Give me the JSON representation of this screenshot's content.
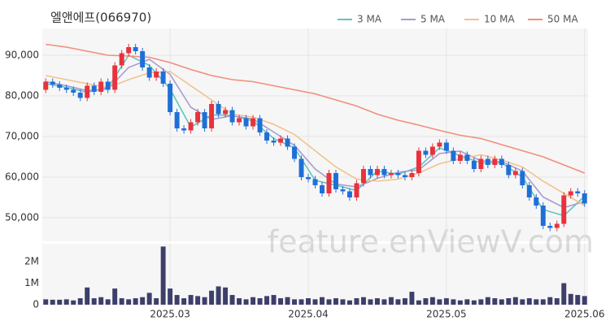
{
  "chart_data": {
    "type": "candlestick",
    "title": "엘앤에프(066970)",
    "watermark": "feature.enViewV.com",
    "legend": "top-right",
    "grid": true,
    "up_color": "#e8323c",
    "down_color": "#1f6fd8",
    "xlim": [
      -0.5,
      78.5
    ],
    "xticks": [
      {
        "value": 18,
        "label": "2025.03"
      },
      {
        "value": 38,
        "label": "2025.04"
      },
      {
        "value": 58,
        "label": "2025.05"
      },
      {
        "value": 78,
        "label": "2025.06"
      }
    ],
    "ylim": [
      44200,
      96600
    ],
    "yticks": [
      {
        "value": 50000,
        "label": "50,000"
      },
      {
        "value": 60000,
        "label": "60,000"
      },
      {
        "value": 70000,
        "label": "70,000"
      },
      {
        "value": 80000,
        "label": "80,000"
      },
      {
        "value": 90000,
        "label": "90,000"
      }
    ],
    "open": [
      81500,
      83500,
      82800,
      82000,
      81500,
      80800,
      79500,
      82500,
      81000,
      83500,
      81500,
      87500,
      90500,
      92000,
      91000,
      87000,
      84500,
      86000,
      83000,
      76000,
      72000,
      71500,
      73500,
      76000,
      72000,
      78000,
      75500,
      76500,
      73500,
      74500,
      72500,
      74500,
      71000,
      69000,
      68500,
      69500,
      67500,
      64500,
      60000,
      59500,
      58000,
      56000,
      61000,
      57000,
      56500,
      55000,
      58500,
      62000,
      60500,
      62000,
      60500,
      61000,
      60500,
      60000,
      61000,
      66500,
      65500,
      67500,
      68500,
      66500,
      64000,
      65500,
      64000,
      62000,
      64500,
      63000,
      64500,
      63000,
      60500,
      61500,
      58000,
      55000,
      53000,
      48000,
      47500,
      48500,
      55500,
      56500,
      56000
    ],
    "high": [
      84300,
      84300,
      83600,
      82800,
      82300,
      81600,
      83300,
      83300,
      84300,
      84300,
      88300,
      91300,
      92800,
      92800,
      91800,
      87800,
      86800,
      86800,
      83800,
      76800,
      72800,
      74300,
      76800,
      76800,
      78800,
      78800,
      77300,
      77300,
      75300,
      75300,
      75300,
      75300,
      71800,
      69800,
      70300,
      70300,
      68300,
      65300,
      60800,
      60300,
      58800,
      61800,
      61800,
      57800,
      57300,
      59300,
      62800,
      62800,
      62800,
      62800,
      61800,
      61800,
      61300,
      61800,
      67300,
      67300,
      68300,
      69300,
      69300,
      67300,
      66300,
      66300,
      64800,
      65300,
      65300,
      65300,
      65300,
      63800,
      62300,
      62300,
      58800,
      55800,
      53800,
      48800,
      49300,
      56300,
      57300,
      57300,
      56800
    ],
    "low": [
      80700,
      82000,
      81200,
      80700,
      80000,
      78700,
      78700,
      80200,
      80200,
      80700,
      80700,
      86700,
      89700,
      90200,
      86200,
      83700,
      83700,
      82200,
      75200,
      71200,
      70700,
      70700,
      72700,
      71200,
      71200,
      74700,
      74700,
      72700,
      72700,
      71700,
      71700,
      70200,
      68200,
      67700,
      67700,
      66700,
      63700,
      59200,
      58700,
      57200,
      55200,
      55200,
      56200,
      55700,
      54200,
      54200,
      57700,
      59700,
      59700,
      59700,
      59700,
      59700,
      59200,
      59200,
      60200,
      64700,
      64700,
      66700,
      65700,
      63200,
      63200,
      63200,
      61200,
      61200,
      62200,
      62200,
      62200,
      59700,
      59700,
      57200,
      54200,
      52200,
      47200,
      46700,
      46700,
      47700,
      54700,
      55200,
      52700
    ],
    "close": [
      83500,
      82800,
      82000,
      81500,
      80800,
      79500,
      82500,
      81000,
      83500,
      81500,
      87500,
      90500,
      92000,
      91000,
      87000,
      84500,
      86000,
      83000,
      76000,
      72000,
      71500,
      73500,
      76000,
      72000,
      78000,
      75500,
      76500,
      73500,
      74500,
      72500,
      74500,
      71000,
      69000,
      68500,
      69500,
      67500,
      64500,
      60000,
      59500,
      58000,
      56000,
      61000,
      57000,
      56500,
      55000,
      58500,
      62000,
      60500,
      62000,
      60500,
      61000,
      60500,
      60000,
      61000,
      66500,
      65500,
      67500,
      68500,
      66500,
      64000,
      65500,
      64000,
      62000,
      64500,
      63000,
      64500,
      63000,
      60500,
      61500,
      58000,
      55000,
      53000,
      48000,
      47500,
      48500,
      55500,
      56500,
      56000,
      53500
    ],
    "series": [
      {
        "name": "3 MA",
        "color": "#5cc6c2",
        "x": [
          0,
          3,
          6,
          9,
          12,
          15,
          18,
          21,
          24,
          27,
          30,
          33,
          36,
          39,
          42,
          45,
          48,
          51,
          54,
          57,
          60,
          63,
          66,
          69,
          72,
          75,
          78
        ],
        "values": [
          83000,
          82100,
          80900,
          82000,
          90000,
          87500,
          81700,
          72300,
          75300,
          75200,
          73800,
          69500,
          67200,
          59200,
          58000,
          56700,
          61500,
          60700,
          62500,
          67200,
          65300,
          63500,
          63500,
          60000,
          52000,
          50500,
          55300
        ]
      },
      {
        "name": "5 MA",
        "color": "#a89bd0",
        "x": [
          0,
          3,
          6,
          9,
          12,
          15,
          18,
          21,
          24,
          27,
          30,
          33,
          36,
          39,
          42,
          45,
          48,
          51,
          54,
          57,
          60,
          63,
          66,
          69,
          72,
          75,
          78
        ],
        "values": [
          83500,
          82500,
          81300,
          81700,
          87000,
          89000,
          85300,
          77200,
          74200,
          75100,
          74300,
          71100,
          67800,
          62000,
          58300,
          57600,
          59700,
          61200,
          61800,
          65800,
          66400,
          64000,
          63800,
          61500,
          55100,
          52500,
          54000
        ]
      },
      {
        "name": "10 MA",
        "color": "#f0c38e",
        "x": [
          0,
          3,
          6,
          9,
          12,
          15,
          18,
          21,
          24,
          27,
          30,
          33,
          36,
          39,
          42,
          45,
          48,
          51,
          54,
          57,
          60,
          63,
          66,
          69,
          72,
          75,
          78
        ],
        "values": [
          85000,
          84000,
          83000,
          82000,
          84000,
          85700,
          86000,
          82500,
          79000,
          75500,
          74800,
          73000,
          70500,
          66500,
          62500,
          59500,
          59000,
          59500,
          61000,
          63300,
          64500,
          65500,
          64200,
          62500,
          59000,
          56000,
          53000
        ]
      },
      {
        "name": "50 MA",
        "color": "#f28e7b",
        "x": [
          0,
          3,
          6,
          9,
          12,
          15,
          18,
          21,
          24,
          27,
          30,
          33,
          36,
          39,
          42,
          45,
          48,
          51,
          54,
          57,
          60,
          63,
          66,
          69,
          72,
          75,
          78
        ],
        "values": [
          92700,
          92000,
          91000,
          90000,
          89800,
          89500,
          88200,
          86500,
          85000,
          84000,
          83500,
          82500,
          81500,
          80500,
          79000,
          77500,
          75500,
          74000,
          72800,
          71500,
          70300,
          69500,
          68000,
          66500,
          65000,
          63000,
          61000
        ]
      }
    ],
    "volume": {
      "color": "#3d3f6b",
      "ylim": [
        0,
        2830000
      ],
      "yticks": [
        0,
        {
          "value": 1000000,
          "label": "1M"
        },
        {
          "value": 2000000,
          "label": "2M"
        }
      ],
      "values": [
        250000,
        230000,
        230000,
        250000,
        200000,
        300000,
        800000,
        300000,
        350000,
        250000,
        750000,
        300000,
        250000,
        300000,
        350000,
        550000,
        300000,
        2700000,
        750000,
        450000,
        300000,
        450000,
        400000,
        350000,
        650000,
        850000,
        800000,
        450000,
        300000,
        250000,
        350000,
        300000,
        400000,
        450000,
        300000,
        350000,
        250000,
        250000,
        300000,
        250000,
        350000,
        250000,
        300000,
        250000,
        200000,
        300000,
        350000,
        250000,
        300000,
        250000,
        350000,
        250000,
        300000,
        600000,
        200000,
        300000,
        350000,
        250000,
        300000,
        250000,
        200000,
        250000,
        200000,
        250000,
        350000,
        300000,
        250000,
        300000,
        350000,
        250000,
        300000,
        250000,
        250000,
        350000,
        300000,
        1000000,
        500000,
        450000,
        400000
      ]
    }
  }
}
